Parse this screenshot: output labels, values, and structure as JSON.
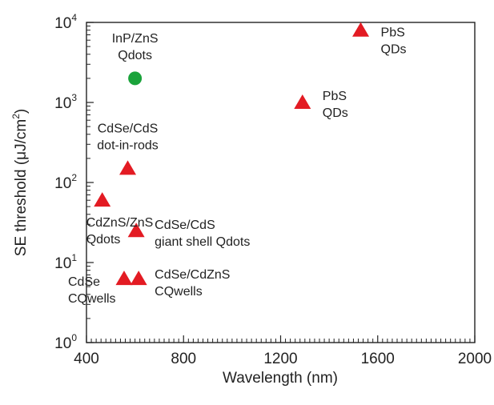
{
  "chart_data": {
    "type": "scatter",
    "xlabel": "Wavelength (nm)",
    "ylabel_main": "SE threshold (μJ/cm",
    "ylabel_sup": "2",
    "ylabel_close": ")",
    "x_scale": "linear",
    "y_scale": "log",
    "xlim": [
      400,
      2000
    ],
    "ylim": [
      1,
      10000
    ],
    "x_ticks": [
      {
        "value": 400,
        "label": "400"
      },
      {
        "value": 800,
        "label": "800"
      },
      {
        "value": 1200,
        "label": "1200"
      },
      {
        "value": 1600,
        "label": "1600"
      },
      {
        "value": 2000,
        "label": "2000"
      }
    ],
    "y_ticks": [
      {
        "value": 1,
        "base": "10",
        "exp": "0"
      },
      {
        "value": 10,
        "base": "10",
        "exp": "1"
      },
      {
        "value": 100,
        "base": "10",
        "exp": "2"
      },
      {
        "value": 1000,
        "base": "10",
        "exp": "3"
      },
      {
        "value": 10000,
        "base": "10",
        "exp": "4"
      }
    ],
    "grid": false,
    "marker_colors": {
      "triangle": "#e31b23",
      "circle": "#1aa33b"
    },
    "points": [
      {
        "x": 600,
        "y": 2000,
        "marker": "circle",
        "label": [
          "InP/ZnS",
          "Qdots"
        ]
      },
      {
        "x": 1530,
        "y": 8000,
        "marker": "triangle",
        "label": [
          "PbS",
          "QDs"
        ]
      },
      {
        "x": 1290,
        "y": 1000,
        "marker": "triangle",
        "label": [
          "PbS",
          "QDs"
        ]
      },
      {
        "x": 570,
        "y": 150,
        "marker": "triangle",
        "label": [
          "CdSe/CdS",
          "dot-in-rods"
        ]
      },
      {
        "x": 465,
        "y": 60,
        "marker": "triangle",
        "label": [
          "CdZnS/ZnS",
          "Qdots"
        ]
      },
      {
        "x": 605,
        "y": 25,
        "marker": "triangle",
        "label": [
          "CdSe/CdS",
          "giant shell Qdots"
        ]
      },
      {
        "x": 555,
        "y": 6.3,
        "marker": "triangle",
        "label": [
          "CdSe",
          "CQwells"
        ]
      },
      {
        "x": 615,
        "y": 6.3,
        "marker": "triangle",
        "label": [
          "CdSe/CdZnS",
          "CQwells"
        ]
      }
    ]
  }
}
